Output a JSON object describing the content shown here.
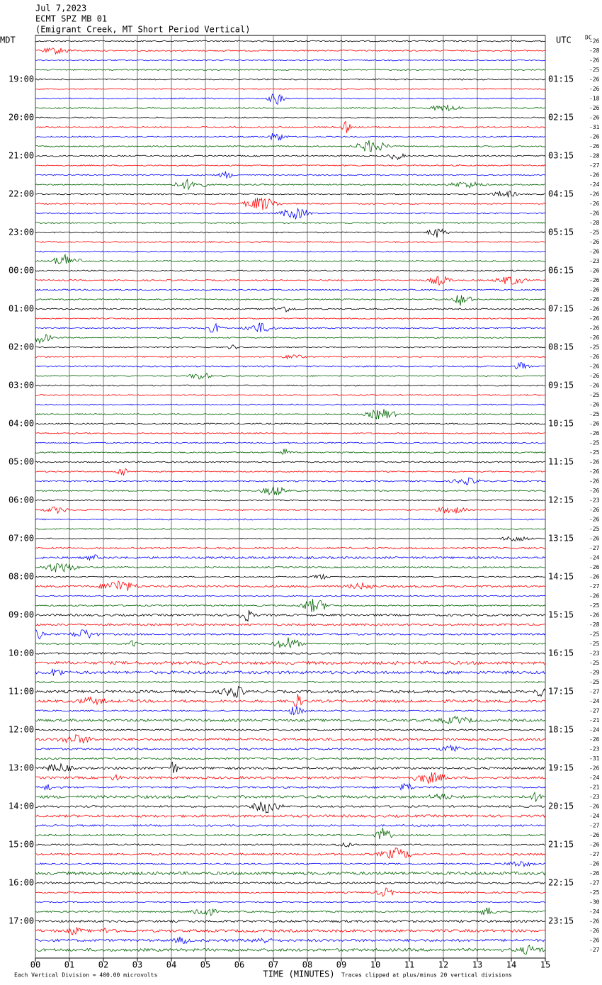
{
  "chart_data": {
    "type": "helicorder",
    "title_lines": [
      "Jul 7,2023",
      "ECMT SPZ MB 01",
      "(Emigrant Creek, MT Short Period Vertical)"
    ],
    "left_axis_title": "MDT",
    "right_axis_title": "UTC",
    "dc_title": "DC",
    "left_labels": [
      "19:00",
      "20:00",
      "21:00",
      "22:00",
      "23:00",
      "00:00",
      "01:00",
      "02:00",
      "03:00",
      "04:00",
      "05:00",
      "06:00",
      "07:00",
      "08:00",
      "09:00",
      "10:00",
      "11:00",
      "12:00",
      "13:00",
      "14:00",
      "15:00",
      "16:00",
      "17:00"
    ],
    "right_labels": [
      "01:15",
      "02:15",
      "03:15",
      "04:15",
      "05:15",
      "06:15",
      "07:15",
      "08:15",
      "09:15",
      "10:15",
      "11:15",
      "12:15",
      "13:15",
      "14:15",
      "15:15",
      "16:15",
      "17:15",
      "18:15",
      "19:15",
      "20:15",
      "21:15",
      "22:15",
      "23:15"
    ],
    "dc_offsets": [
      -26,
      -28,
      -26,
      -25,
      -26,
      -26,
      -18,
      -26,
      -26,
      -31,
      -26,
      -26,
      -28,
      -27,
      -26,
      -24,
      -26,
      -26,
      -26,
      -28,
      -25,
      -26,
      -26,
      -23,
      -26,
      -26,
      -26,
      -26,
      -26,
      -26,
      -26,
      -26,
      -25,
      -26,
      -26,
      -26,
      -26,
      -25,
      -26,
      -25,
      -26,
      -26,
      -25,
      -25,
      -26,
      -26,
      -26,
      -26,
      -23,
      -26,
      -26,
      -25,
      -26,
      -27,
      -24,
      -26,
      -26,
      -27,
      -26,
      -25,
      -26,
      -28,
      -25,
      -25,
      -23,
      -25,
      -29,
      -25,
      -27,
      -24,
      -27,
      -21,
      -24,
      -26,
      -23,
      -31,
      -26,
      -24,
      -21,
      -23,
      -26,
      -24,
      -27,
      -26,
      -26,
      -27,
      -26,
      -26,
      -27,
      -25,
      -30,
      -24,
      -26,
      -26,
      -26,
      -27
    ],
    "trace_colors": [
      "#000000",
      "#ff0000",
      "#0000ff",
      "#006400"
    ],
    "xlim": [
      0,
      15
    ],
    "xticks": [
      {
        "value": 0,
        "label": "00"
      },
      {
        "value": 1,
        "label": "01"
      },
      {
        "value": 2,
        "label": "02"
      },
      {
        "value": 3,
        "label": "03"
      },
      {
        "value": 4,
        "label": "04"
      },
      {
        "value": 5,
        "label": "05"
      },
      {
        "value": 6,
        "label": "06"
      },
      {
        "value": 7,
        "label": "07"
      },
      {
        "value": 8,
        "label": "08"
      },
      {
        "value": 9,
        "label": "09"
      },
      {
        "value": 10,
        "label": "10"
      },
      {
        "value": 11,
        "label": "11"
      },
      {
        "value": 12,
        "label": "12"
      },
      {
        "value": 13,
        "label": "13"
      },
      {
        "value": 14,
        "label": "14"
      },
      {
        "value": 15,
        "label": "15"
      }
    ],
    "x_label": "TIME (MINUTES)",
    "footer_left": "Each Vertical Division =  400.00 microvolts",
    "footer_right": "Traces clipped at plus/minus 20 vertical divisions",
    "grid": true
  }
}
